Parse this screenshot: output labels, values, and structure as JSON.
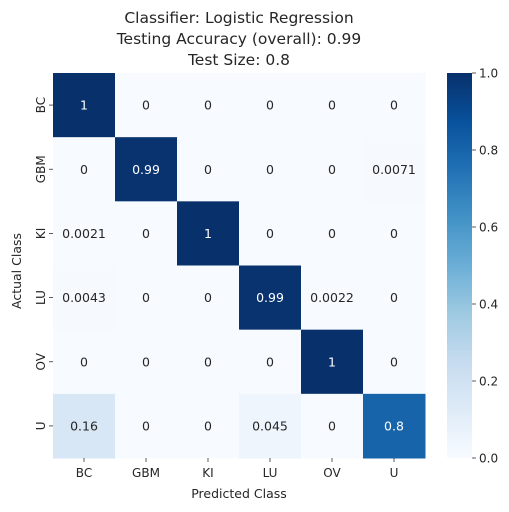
{
  "chart_data": {
    "type": "heatmap",
    "title_lines": [
      "Classifier: Logistic Regression",
      "Testing Accuracy (overall): 0.99",
      "Test Size: 0.8"
    ],
    "xlabel": "Predicted Class",
    "ylabel": "Actual Class",
    "x_categories": [
      "BC",
      "GBM",
      "KI",
      "LU",
      "OV",
      "U"
    ],
    "y_categories": [
      "BC",
      "GBM",
      "KI",
      "LU",
      "OV",
      "U"
    ],
    "values": [
      [
        1,
        0,
        0,
        0,
        0,
        0
      ],
      [
        0,
        0.99,
        0,
        0,
        0,
        0.0071
      ],
      [
        0.0021,
        0,
        1,
        0,
        0,
        0
      ],
      [
        0.0043,
        0,
        0,
        0.99,
        0.0022,
        0
      ],
      [
        0,
        0,
        0,
        0,
        1,
        0
      ],
      [
        0.16,
        0,
        0,
        0.045,
        0,
        0.8
      ]
    ],
    "annotations": [
      [
        "1",
        "0",
        "0",
        "0",
        "0",
        "0"
      ],
      [
        "0",
        "0.99",
        "0",
        "0",
        "0",
        "0.0071"
      ],
      [
        "0.0021",
        "0",
        "1",
        "0",
        "0",
        "0"
      ],
      [
        "0.0043",
        "0",
        "0",
        "0.99",
        "0.0022",
        "0"
      ],
      [
        "0",
        "0",
        "0",
        "0",
        "1",
        "0"
      ],
      [
        "0.16",
        "0",
        "0",
        "0.045",
        "0",
        "0.8"
      ]
    ],
    "colorbar": {
      "range": [
        0,
        1
      ],
      "ticks": [
        0.0,
        0.2,
        0.4,
        0.6,
        0.8,
        1.0
      ],
      "tick_labels": [
        "0.0",
        "0.2",
        "0.4",
        "0.6",
        "0.8",
        "1.0"
      ]
    },
    "colormap": "Blues",
    "colormap_stops": [
      "#f7fbff",
      "#deebf7",
      "#c6dbef",
      "#9ecae1",
      "#6baed6",
      "#4292c6",
      "#2171b5",
      "#08519c",
      "#08306b"
    ]
  }
}
